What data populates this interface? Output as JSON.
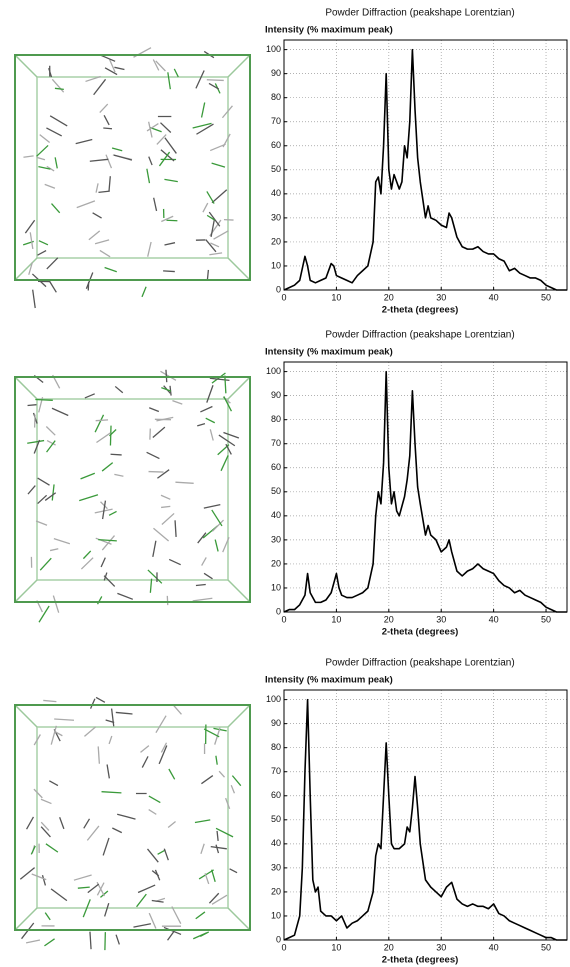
{
  "chart_data": [
    {
      "type": "line",
      "title": "Powder Diffraction  (peakshape Lorentzian)",
      "y_label": "Intensity (% maximum peak)",
      "x_label": "2-theta (degrees)",
      "x": [
        0,
        1,
        2,
        3,
        4,
        4.5,
        5,
        6,
        7,
        8,
        9,
        9.5,
        10,
        11,
        12,
        13,
        14,
        15,
        16,
        17,
        17.5,
        18,
        18.5,
        19,
        19.5,
        20,
        20.5,
        21,
        22,
        22.5,
        23,
        23.5,
        24,
        24.5,
        25,
        25.5,
        26,
        27,
        27.5,
        28,
        29,
        30,
        31,
        31.5,
        32,
        33,
        34,
        35,
        36,
        37,
        38,
        39,
        40,
        41,
        42,
        43,
        44,
        45,
        46,
        47,
        48,
        49,
        50,
        51,
        52,
        54
      ],
      "values": [
        0,
        1,
        2,
        4,
        14,
        10,
        4,
        3,
        4,
        5,
        11,
        10,
        6,
        5,
        4,
        3,
        6,
        8,
        10,
        20,
        45,
        47,
        40,
        60,
        90,
        50,
        42,
        48,
        42,
        45,
        60,
        55,
        70,
        100,
        75,
        55,
        45,
        30,
        35,
        30,
        29,
        27,
        26,
        32,
        30,
        22,
        18,
        17,
        17,
        18,
        16,
        15,
        15,
        13,
        12,
        8,
        9,
        7,
        6,
        5,
        5,
        4,
        2,
        1,
        0,
        0
      ],
      "color": "#000000",
      "xlim": [
        0,
        54
      ],
      "ylim": [
        0,
        104
      ],
      "xticks": [
        0,
        10,
        20,
        30,
        40,
        50
      ],
      "yticks": [
        0,
        10,
        20,
        30,
        40,
        50,
        60,
        70,
        80,
        90,
        100
      ],
      "grid": true
    },
    {
      "type": "line",
      "title": "Powder Diffraction  (peakshape Lorentzian)",
      "y_label": "Intensity (% maximum peak)",
      "x_label": "2-theta (degrees)",
      "x": [
        0,
        1,
        2,
        3,
        4,
        4.5,
        5,
        6,
        7,
        8,
        9,
        9.5,
        10,
        10.5,
        11,
        12,
        13,
        14,
        15,
        16,
        17,
        17.5,
        18,
        18.5,
        19,
        19.5,
        20,
        20.5,
        21,
        21.5,
        22,
        23,
        23.5,
        24,
        24.5,
        25,
        25.5,
        26,
        27,
        27.5,
        28,
        29,
        30,
        31,
        31.5,
        32,
        33,
        34,
        35,
        36,
        37,
        38,
        39,
        40,
        41,
        42,
        43,
        44,
        45,
        46,
        47,
        48,
        49,
        50,
        51,
        52,
        54
      ],
      "values": [
        0,
        1,
        1,
        3,
        7,
        16,
        8,
        4,
        4,
        5,
        8,
        12,
        16,
        10,
        7,
        6,
        6,
        7,
        8,
        10,
        20,
        40,
        50,
        45,
        62,
        100,
        60,
        45,
        50,
        42,
        40,
        48,
        55,
        65,
        92,
        70,
        52,
        45,
        32,
        36,
        32,
        30,
        25,
        27,
        30,
        25,
        17,
        15,
        17,
        18,
        20,
        18,
        17,
        16,
        13,
        11,
        10,
        8,
        9,
        7,
        6,
        5,
        4,
        2,
        1,
        0,
        0
      ],
      "color": "#000000",
      "xlim": [
        0,
        54
      ],
      "ylim": [
        0,
        104
      ],
      "xticks": [
        0,
        10,
        20,
        30,
        40,
        50
      ],
      "yticks": [
        0,
        10,
        20,
        30,
        40,
        50,
        60,
        70,
        80,
        90,
        100
      ],
      "grid": true
    },
    {
      "type": "line",
      "title": "Powder Diffraction  (peakshape Lorentzian)",
      "y_label": "Intensity (% maximum peak)",
      "x_label": "2-theta (degrees)",
      "x": [
        0,
        1,
        2,
        3,
        3.5,
        4,
        4.5,
        5,
        5.5,
        6,
        6.5,
        7,
        8,
        9,
        10,
        11,
        12,
        13,
        14,
        15,
        16,
        17,
        17.5,
        18,
        18.5,
        19,
        19.5,
        20,
        20.5,
        21,
        22,
        23,
        23.5,
        24,
        24.5,
        25,
        25.5,
        26,
        27,
        28,
        29,
        30,
        31,
        32,
        33,
        34,
        35,
        36,
        37,
        38,
        39,
        40,
        41,
        42,
        43,
        44,
        45,
        46,
        47,
        48,
        49,
        50,
        51,
        52,
        54
      ],
      "values": [
        0,
        1,
        2,
        10,
        30,
        70,
        100,
        60,
        25,
        20,
        22,
        12,
        10,
        10,
        8,
        10,
        5,
        7,
        8,
        10,
        12,
        20,
        35,
        40,
        38,
        60,
        82,
        60,
        40,
        38,
        38,
        40,
        47,
        45,
        55,
        68,
        55,
        40,
        25,
        22,
        20,
        18,
        22,
        24,
        17,
        15,
        14,
        15,
        14,
        14,
        13,
        15,
        11,
        10,
        8,
        7,
        6,
        5,
        4,
        3,
        2,
        1,
        1,
        0,
        0
      ],
      "color": "#000000",
      "xlim": [
        0,
        54
      ],
      "ylim": [
        0,
        104
      ],
      "xticks": [
        0,
        10,
        20,
        30,
        40,
        50
      ],
      "yticks": [
        0,
        10,
        20,
        30,
        40,
        50,
        60,
        70,
        80,
        90,
        100
      ],
      "grid": true
    }
  ]
}
